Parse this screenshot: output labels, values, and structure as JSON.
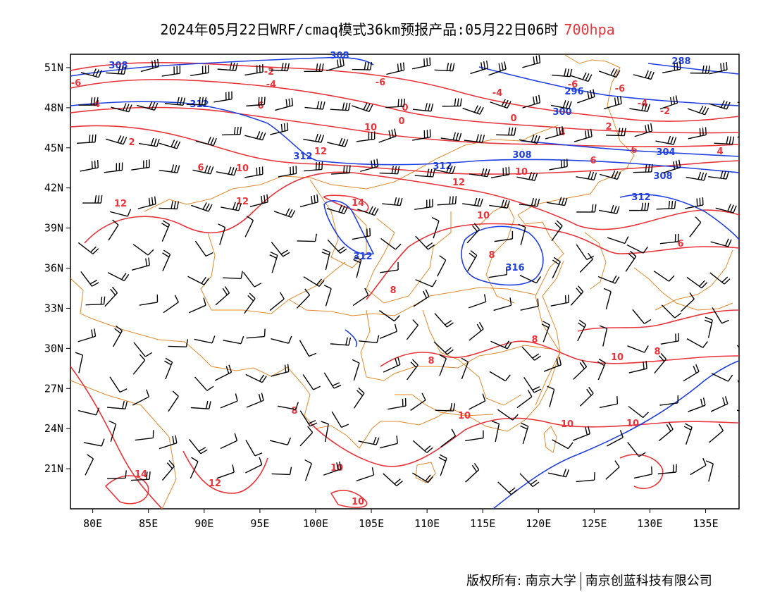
{
  "title": {
    "main": "2024年05月22日WRF/cmaq模式36km预报产品:05月22日06时",
    "level": "700hpa",
    "level_color": "#e8343a"
  },
  "map": {
    "projection": "lat-lon",
    "lon_range": [
      78,
      138
    ],
    "lat_range": [
      18,
      52
    ],
    "lon_ticks": [
      "80E",
      "85E",
      "90E",
      "95E",
      "100E",
      "105E",
      "110E",
      "115E",
      "120E",
      "125E",
      "130E",
      "135E"
    ],
    "lat_ticks": [
      "51N",
      "48N",
      "45N",
      "42N",
      "39N",
      "36N",
      "33N",
      "30N",
      "27N",
      "24N",
      "21N"
    ],
    "colors": {
      "temperature_contour": "#e8343a",
      "height_contour": "#2040e0",
      "boundaries": "#e08a2c",
      "wind_barbs": "#000000"
    },
    "temperature_labels": [
      "-6",
      "-4",
      "-2",
      "0",
      "2",
      "4",
      "6",
      "8",
      "10",
      "12",
      "14"
    ],
    "height_labels": [
      "288",
      "296",
      "300",
      "304",
      "308",
      "312",
      "316"
    ]
  },
  "footer": {
    "left": "版权所有: 南京大学",
    "right": "南京创蓝科技有限公司"
  }
}
